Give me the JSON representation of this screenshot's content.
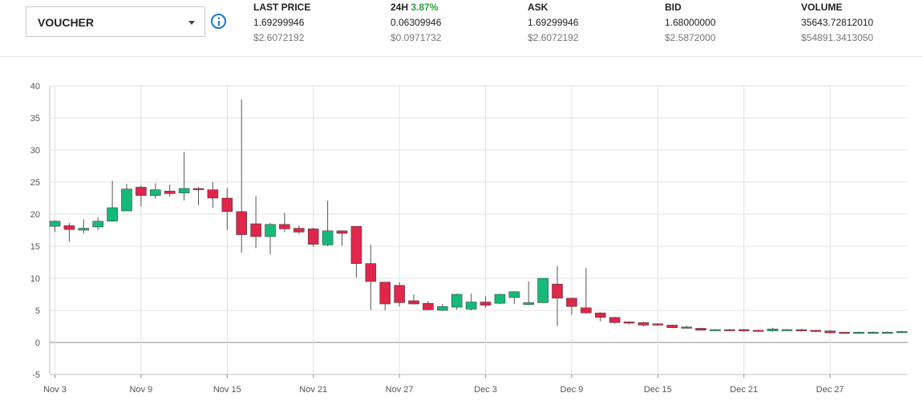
{
  "market": {
    "selected": "VOUCHER"
  },
  "stats": {
    "last_price": {
      "label": "LAST PRICE",
      "value": "1.69299946",
      "usd": "$2.6072192"
    },
    "change_24h": {
      "label": "24H",
      "percent": "3.87%",
      "value": "0.06309946",
      "usd": "$0.0971732",
      "color": "#2e9e3e"
    },
    "ask": {
      "label": "ASK",
      "value": "1.69299946",
      "usd": "$2.6072192"
    },
    "bid": {
      "label": "BID",
      "value": "1.68000000",
      "usd": "$2.5872000"
    },
    "volume": {
      "label": "VOLUME",
      "value": "35643.72812010",
      "usd": "$54891.3413050"
    }
  },
  "icons": {
    "market_dropdown": "chevron-down-icon",
    "info": "info-icon"
  },
  "chart_data": {
    "type": "candlestick",
    "ylim": [
      -5,
      40
    ],
    "y_ticks": [
      -5,
      0,
      5,
      10,
      15,
      20,
      25,
      30,
      35,
      40
    ],
    "x_ticks": [
      "Nov 3",
      "Nov 9",
      "Nov 15",
      "Nov 21",
      "Nov 27",
      "Dec 3",
      "Dec 9",
      "Dec 15",
      "Dec 21",
      "Dec 27"
    ],
    "grid": true,
    "colors": {
      "up": "#16b979",
      "down": "#e0264a",
      "wick": "#555555"
    },
    "candles": [
      {
        "date": "Nov 3",
        "open": 18.1,
        "high": 19.0,
        "low": 17.2,
        "close": 18.9
      },
      {
        "date": "Nov 4",
        "open": 18.2,
        "high": 18.6,
        "low": 15.7,
        "close": 17.6
      },
      {
        "date": "Nov 5",
        "open": 17.5,
        "high": 19.2,
        "low": 17.0,
        "close": 17.8
      },
      {
        "date": "Nov 6",
        "open": 18.0,
        "high": 19.5,
        "low": 17.5,
        "close": 18.9
      },
      {
        "date": "Nov 7",
        "open": 18.9,
        "high": 25.2,
        "low": 18.8,
        "close": 21.0
      },
      {
        "date": "Nov 8",
        "open": 20.5,
        "high": 24.7,
        "low": 20.5,
        "close": 23.9
      },
      {
        "date": "Nov 9",
        "open": 24.2,
        "high": 24.5,
        "low": 21.2,
        "close": 22.9
      },
      {
        "date": "Nov 10",
        "open": 22.9,
        "high": 24.8,
        "low": 22.4,
        "close": 23.8
      },
      {
        "date": "Nov 11",
        "open": 23.6,
        "high": 24.6,
        "low": 22.7,
        "close": 23.2
      },
      {
        "date": "Nov 12",
        "open": 23.3,
        "high": 29.7,
        "low": 22.1,
        "close": 24.0
      },
      {
        "date": "Nov 13",
        "open": 24.0,
        "high": 24.2,
        "low": 21.4,
        "close": 23.8
      },
      {
        "date": "Nov 14",
        "open": 23.8,
        "high": 25.0,
        "low": 21.0,
        "close": 22.5
      },
      {
        "date": "Nov 15",
        "open": 22.5,
        "high": 24.1,
        "low": 17.5,
        "close": 20.4
      },
      {
        "date": "Nov 16",
        "open": 20.4,
        "high": 37.9,
        "low": 14.0,
        "close": 16.8
      },
      {
        "date": "Nov 17",
        "open": 18.5,
        "high": 22.8,
        "low": 14.7,
        "close": 16.5
      },
      {
        "date": "Nov 18",
        "open": 16.5,
        "high": 18.6,
        "low": 13.7,
        "close": 18.4
      },
      {
        "date": "Nov 19",
        "open": 18.4,
        "high": 20.2,
        "low": 17.2,
        "close": 17.7
      },
      {
        "date": "Nov 20",
        "open": 17.8,
        "high": 18.2,
        "low": 16.9,
        "close": 17.2
      },
      {
        "date": "Nov 21",
        "open": 17.7,
        "high": 17.9,
        "low": 14.9,
        "close": 15.3
      },
      {
        "date": "Nov 22",
        "open": 15.2,
        "high": 22.1,
        "low": 15.0,
        "close": 17.4
      },
      {
        "date": "Nov 23",
        "open": 17.4,
        "high": 17.5,
        "low": 15.1,
        "close": 17.0
      },
      {
        "date": "Nov 24",
        "open": 18.1,
        "high": 18.1,
        "low": 10.1,
        "close": 12.3
      },
      {
        "date": "Nov 25",
        "open": 12.3,
        "high": 15.2,
        "low": 5.1,
        "close": 9.5
      },
      {
        "date": "Nov 26",
        "open": 9.4,
        "high": 9.4,
        "low": 5.0,
        "close": 6.0
      },
      {
        "date": "Nov 27",
        "open": 8.9,
        "high": 9.4,
        "low": 5.6,
        "close": 6.2
      },
      {
        "date": "Nov 28",
        "open": 6.5,
        "high": 7.5,
        "low": 5.9,
        "close": 6.0
      },
      {
        "date": "Nov 29",
        "open": 6.1,
        "high": 6.4,
        "low": 5.0,
        "close": 5.1
      },
      {
        "date": "Nov 30",
        "open": 5.0,
        "high": 6.0,
        "low": 4.9,
        "close": 5.6
      },
      {
        "date": "Dec 1",
        "open": 5.5,
        "high": 7.6,
        "low": 5.1,
        "close": 7.5
      },
      {
        "date": "Dec 2",
        "open": 5.2,
        "high": 7.6,
        "low": 5.0,
        "close": 6.3
      },
      {
        "date": "Dec 3",
        "open": 6.3,
        "high": 7.2,
        "low": 5.4,
        "close": 5.8
      },
      {
        "date": "Dec 4",
        "open": 6.1,
        "high": 7.6,
        "low": 6.0,
        "close": 7.5
      },
      {
        "date": "Dec 5",
        "open": 7.0,
        "high": 8.0,
        "low": 6.0,
        "close": 7.9
      },
      {
        "date": "Dec 6",
        "open": 5.9,
        "high": 9.5,
        "low": 5.8,
        "close": 6.2
      },
      {
        "date": "Dec 7",
        "open": 6.2,
        "high": 10.0,
        "low": 6.1,
        "close": 10.0
      },
      {
        "date": "Dec 8",
        "open": 9.1,
        "high": 11.9,
        "low": 2.6,
        "close": 6.9
      },
      {
        "date": "Dec 9",
        "open": 6.9,
        "high": 7.0,
        "low": 4.3,
        "close": 5.6
      },
      {
        "date": "Dec 10",
        "open": 5.4,
        "high": 11.6,
        "low": 4.5,
        "close": 4.6
      },
      {
        "date": "Dec 11",
        "open": 4.6,
        "high": 4.7,
        "low": 3.3,
        "close": 3.9
      },
      {
        "date": "Dec 12",
        "open": 3.9,
        "high": 4.0,
        "low": 2.9,
        "close": 3.1
      },
      {
        "date": "Dec 13",
        "open": 3.2,
        "high": 3.3,
        "low": 2.8,
        "close": 3.0
      },
      {
        "date": "Dec 14",
        "open": 3.1,
        "high": 3.2,
        "low": 2.5,
        "close": 2.7
      },
      {
        "date": "Dec 15",
        "open": 2.9,
        "high": 3.0,
        "low": 2.6,
        "close": 2.7
      },
      {
        "date": "Dec 16",
        "open": 2.7,
        "high": 2.8,
        "low": 2.2,
        "close": 2.3
      },
      {
        "date": "Dec 17",
        "open": 2.4,
        "high": 2.6,
        "low": 2.2,
        "close": 2.3
      },
      {
        "date": "Dec 18",
        "open": 2.2,
        "high": 2.3,
        "low": 1.9,
        "close": 1.9
      },
      {
        "date": "Dec 19",
        "open": 2.0,
        "high": 2.1,
        "low": 1.9,
        "close": 2.0
      },
      {
        "date": "Dec 20",
        "open": 2.0,
        "high": 2.1,
        "low": 1.9,
        "close": 1.9
      },
      {
        "date": "Dec 21",
        "open": 2.0,
        "high": 2.1,
        "low": 1.7,
        "close": 1.8
      },
      {
        "date": "Dec 22",
        "open": 1.9,
        "high": 2.0,
        "low": 1.7,
        "close": 1.8
      },
      {
        "date": "Dec 23",
        "open": 1.8,
        "high": 2.3,
        "low": 1.7,
        "close": 2.1
      },
      {
        "date": "Dec 24",
        "open": 2.0,
        "high": 2.1,
        "low": 1.9,
        "close": 2.0
      },
      {
        "date": "Dec 25",
        "open": 2.0,
        "high": 2.1,
        "low": 1.7,
        "close": 1.8
      },
      {
        "date": "Dec 26",
        "open": 1.9,
        "high": 1.9,
        "low": 1.6,
        "close": 1.7
      },
      {
        "date": "Dec 27",
        "open": 1.8,
        "high": 1.9,
        "low": 1.4,
        "close": 1.5
      },
      {
        "date": "Dec 28",
        "open": 1.6,
        "high": 1.6,
        "low": 1.4,
        "close": 1.5
      },
      {
        "date": "Dec 29",
        "open": 1.6,
        "high": 1.7,
        "low": 1.5,
        "close": 1.6
      },
      {
        "date": "Dec 30",
        "open": 1.6,
        "high": 1.7,
        "low": 1.5,
        "close": 1.6
      },
      {
        "date": "Dec 31",
        "open": 1.6,
        "high": 1.7,
        "low": 1.5,
        "close": 1.6
      },
      {
        "date": "Jan 1",
        "open": 1.6,
        "high": 1.8,
        "low": 1.6,
        "close": 1.7
      }
    ]
  }
}
